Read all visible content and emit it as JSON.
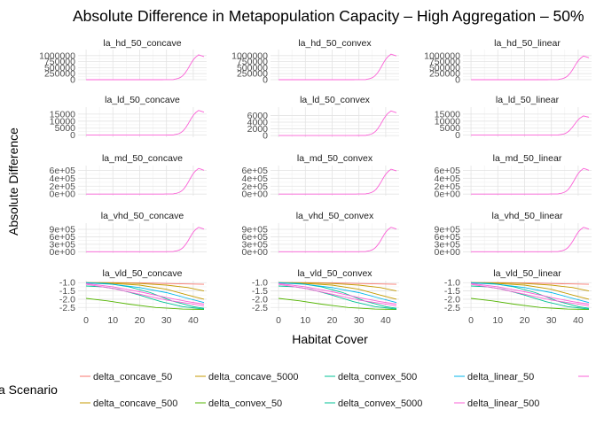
{
  "chart_data": {
    "type": "line",
    "title": "Absolute Difference in Metapopulation Capacity – High Aggregation – 50%",
    "xlabel": "Habitat Cover",
    "ylabel": "Absolute Difference",
    "legend_title": "a Scenario",
    "legend_position": "bottom",
    "grid": true,
    "xlim": [
      -3,
      45
    ],
    "x_ticks": [
      0,
      10,
      20,
      30,
      40
    ],
    "legend": [
      {
        "name": "delta_concave_50",
        "color": "#F8766D"
      },
      {
        "name": "delta_concave_5000",
        "color": "#C49A00"
      },
      {
        "name": "delta_convex_500",
        "color": "#00C094"
      },
      {
        "name": "delta_linear_50",
        "color": "#00B6EB"
      },
      {
        "name": "",
        "color": "#FB61D7"
      },
      {
        "name": "delta_concave_500",
        "color": "#C49A00"
      },
      {
        "name": "delta_convex_50",
        "color": "#53B400"
      },
      {
        "name": "delta_convex_5000",
        "color": "#00C094"
      },
      {
        "name": "delta_linear_500",
        "color": "#FB61D7"
      }
    ],
    "rows": [
      {
        "prefix": "la_hd_50_",
        "yrange": [
          0,
          1250000
        ],
        "yticks": [
          0,
          250000,
          500000,
          750000,
          1000000
        ],
        "ytick_labels": [
          "0",
          "250000",
          "500000",
          "750000",
          "1000000"
        ],
        "peaks": {
          "concave": 1050000,
          "convex": 1080000,
          "linear": 1000000
        }
      },
      {
        "prefix": "la_ld_50_",
        "yrange": [
          -1500,
          20000
        ],
        "yticks": [
          0,
          5000,
          10000,
          15000
        ],
        "ytick_labels": [
          "0",
          "5000",
          "10000",
          "15000"
        ],
        "peaks": {
          "concave": 18000,
          "convex": 0,
          "linear": 14000
        },
        "convex_override": {
          "yrange": [
            -500,
            8500
          ],
          "yticks": [
            0,
            2000,
            4000,
            6000
          ],
          "ytick_labels": [
            "0",
            "2000",
            "4000",
            "6000"
          ],
          "peak": 7500
        }
      },
      {
        "prefix": "la_md_50_",
        "yrange": [
          -40000,
          720000
        ],
        "yticks": [
          0,
          200000,
          400000,
          600000
        ],
        "ytick_labels": [
          "0e+00",
          "2e+05",
          "4e+05",
          "6e+05"
        ],
        "peaks": {
          "concave": 660000,
          "convex": 640000,
          "linear": 660000
        }
      },
      {
        "prefix": "la_vhd_50_",
        "yrange": [
          -60000,
          1150000
        ],
        "yticks": [
          0,
          300000,
          600000,
          900000
        ],
        "ytick_labels": [
          "0e+00",
          "3e+05",
          "6e+05",
          "9e+05"
        ],
        "peaks": {
          "concave": 1000000,
          "convex": 1000000,
          "linear": 1000000
        }
      },
      {
        "prefix": "la_vld_50_",
        "yrange": [
          -2.7,
          -0.88
        ],
        "yticks": [
          -1.0,
          -1.5,
          -2.0,
          -2.5
        ],
        "ytick_labels": [
          "-1.0",
          "-1.5",
          "-2.0",
          "-2.5"
        ],
        "negative": true
      }
    ],
    "columns": [
      "concave",
      "convex",
      "linear"
    ],
    "panel_titles": [
      [
        "la_hd_50_concave",
        "la_hd_50_convex",
        "la_hd_50_linear"
      ],
      [
        "la_ld_50_concave",
        "la_ld_50_convex",
        "la_ld_50_linear"
      ],
      [
        "la_md_50_concave",
        "la_md_50_convex",
        "la_md_50_linear"
      ],
      [
        "la_vhd_50_concave",
        "la_vhd_50_convex",
        "la_vhd_50_linear"
      ],
      [
        "la_vld_50_concave",
        "la_vld_50_convex",
        "la_vld_50_linear"
      ]
    ],
    "vld_series": [
      {
        "name": "delta_concave_50",
        "color": "#F8766D",
        "values": [
          [
            0,
            -1.0
          ],
          [
            10,
            -1.0
          ],
          [
            20,
            -1.02
          ],
          [
            30,
            -1.05
          ],
          [
            44,
            -1.1
          ]
        ]
      },
      {
        "name": "delta_concave_500",
        "color": "#C49A00",
        "values": [
          [
            0,
            -1.0
          ],
          [
            10,
            -1.01
          ],
          [
            20,
            -1.05
          ],
          [
            30,
            -1.15
          ],
          [
            38,
            -1.3
          ],
          [
            44,
            -1.5
          ]
        ]
      },
      {
        "name": "delta_concave_5000",
        "color": "#C49A00",
        "values": [
          [
            0,
            -1.02
          ],
          [
            10,
            -1.05
          ],
          [
            20,
            -1.15
          ],
          [
            30,
            -1.4
          ],
          [
            38,
            -1.75
          ],
          [
            44,
            -2.0
          ]
        ]
      },
      {
        "name": "delta_convex_50",
        "color": "#53B400",
        "values": [
          [
            0,
            -1.95
          ],
          [
            8,
            -2.1
          ],
          [
            16,
            -2.3
          ],
          [
            26,
            -2.5
          ],
          [
            36,
            -2.6
          ],
          [
            44,
            -2.62
          ]
        ]
      },
      {
        "name": "delta_convex_500",
        "color": "#00C094",
        "values": [
          [
            0,
            -1.2
          ],
          [
            6,
            -1.25
          ],
          [
            12,
            -1.4
          ],
          [
            20,
            -1.75
          ],
          [
            28,
            -2.15
          ],
          [
            36,
            -2.45
          ],
          [
            44,
            -2.6
          ]
        ]
      },
      {
        "name": "delta_convex_5000",
        "color": "#00C094",
        "values": [
          [
            0,
            -1.0
          ],
          [
            8,
            -1.05
          ],
          [
            16,
            -1.25
          ],
          [
            24,
            -1.6
          ],
          [
            32,
            -2.1
          ],
          [
            40,
            -2.45
          ],
          [
            44,
            -2.55
          ]
        ]
      },
      {
        "name": "delta_linear_50",
        "color": "#00B6EB",
        "values": [
          [
            0,
            -1.02
          ],
          [
            10,
            -1.1
          ],
          [
            20,
            -1.3
          ],
          [
            30,
            -1.6
          ],
          [
            38,
            -1.95
          ],
          [
            44,
            -2.2
          ]
        ]
      },
      {
        "name": "delta_linear_500",
        "color": "#FB61D7",
        "values": [
          [
            0,
            -1.05
          ],
          [
            10,
            -1.25
          ],
          [
            20,
            -1.55
          ],
          [
            30,
            -1.9
          ],
          [
            38,
            -2.15
          ],
          [
            44,
            -2.3
          ]
        ]
      },
      {
        "name": "",
        "color": "#FB61D7",
        "values": [
          [
            0,
            -1.1
          ],
          [
            10,
            -1.35
          ],
          [
            20,
            -1.7
          ],
          [
            30,
            -2.05
          ],
          [
            38,
            -2.25
          ],
          [
            44,
            -2.4
          ]
        ]
      }
    ]
  }
}
